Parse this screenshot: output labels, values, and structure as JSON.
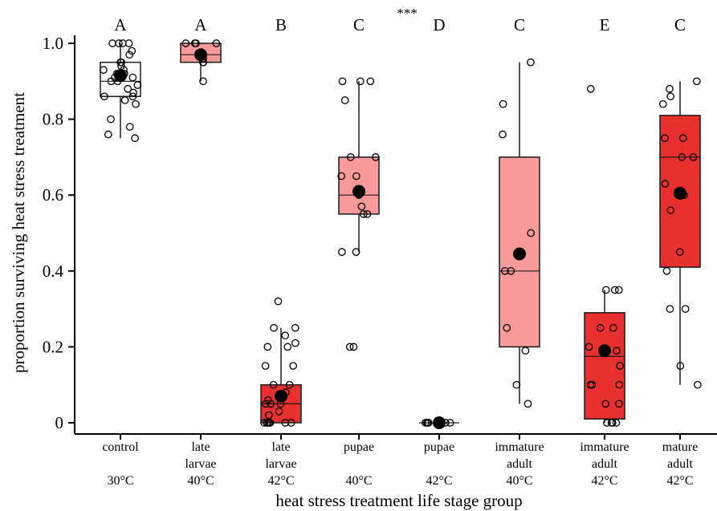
{
  "chart_data": {
    "type": "box",
    "title": "",
    "significance": "***",
    "xlabel": "heat stress treatment life stage group",
    "ylabel": "proportion surviving heat stress treatment",
    "ylim": [
      -0.03,
      1.03
    ],
    "yticks": [
      {
        "value": 0,
        "label": "0"
      },
      {
        "value": 0.2,
        "label": "0.2"
      },
      {
        "value": 0.4,
        "label": "0.4"
      },
      {
        "value": 0.6,
        "label": "0.6"
      },
      {
        "value": 0.8,
        "label": "0.8"
      },
      {
        "value": 1.0,
        "label": "1.0"
      }
    ],
    "colors": {
      "control": "#ffffff",
      "light_red": "#f99a9a",
      "red": "#e8302e",
      "outline": "#1a1a1a",
      "mean": "#000000"
    },
    "groups": [
      {
        "name_lines": [
          "control",
          "",
          "30°C"
        ],
        "letter": "A",
        "fill": "control",
        "q1": 0.86,
        "median": 0.9,
        "q3": 0.95,
        "whisker_low": 0.75,
        "whisker_high": 1.0,
        "mean": 0.915,
        "points": [
          1.0,
          1.0,
          1.0,
          1.0,
          0.98,
          0.97,
          0.95,
          0.95,
          0.94,
          0.93,
          0.93,
          0.92,
          0.92,
          0.91,
          0.91,
          0.9,
          0.9,
          0.89,
          0.88,
          0.87,
          0.86,
          0.86,
          0.85,
          0.84,
          0.8,
          0.78,
          0.76,
          0.75
        ]
      },
      {
        "name_lines": [
          "late",
          "larvae",
          "40°C"
        ],
        "letter": "A",
        "fill": "light_red",
        "q1": 0.95,
        "median": 0.97,
        "q3": 1.0,
        "whisker_low": 0.9,
        "whisker_high": 1.0,
        "mean": 0.97,
        "points": [
          1.0,
          1.0,
          1.0,
          1.0,
          0.97,
          0.96,
          0.95,
          0.95,
          0.9
        ]
      },
      {
        "name_lines": [
          "late",
          "larvae",
          "42°C"
        ],
        "letter": "B",
        "fill": "red",
        "q1": 0.0,
        "median": 0.05,
        "q3": 0.1,
        "whisker_low": 0.0,
        "whisker_high": 0.25,
        "mean": 0.07,
        "points": [
          0.32,
          0.25,
          0.25,
          0.23,
          0.21,
          0.2,
          0.2,
          0.15,
          0.15,
          0.1,
          0.1,
          0.08,
          0.06,
          0.05,
          0.05,
          0.05,
          0.03,
          0.02,
          0.0,
          0.0,
          0.0,
          0.0,
          0.0,
          0.0,
          0.0
        ]
      },
      {
        "name_lines": [
          "pupae",
          "",
          "40°C"
        ],
        "letter": "C",
        "fill": "light_red",
        "q1": 0.55,
        "median": 0.6,
        "q3": 0.7,
        "whisker_low": 0.45,
        "whisker_high": 0.9,
        "mean": 0.61,
        "points": [
          0.9,
          0.9,
          0.9,
          0.85,
          0.7,
          0.7,
          0.65,
          0.65,
          0.6,
          0.57,
          0.55,
          0.55,
          0.45,
          0.45,
          0.2,
          0.2
        ]
      },
      {
        "name_lines": [
          "pupae",
          "",
          "42°C"
        ],
        "letter": "D",
        "fill": "red",
        "q1": 0.0,
        "median": 0.0,
        "q3": 0.0,
        "whisker_low": 0.0,
        "whisker_high": 0.0,
        "mean": 0.0,
        "points": [
          0.0,
          0.0,
          0.0,
          0.0,
          0.0,
          0.0
        ]
      },
      {
        "name_lines": [
          "immature",
          "adult",
          "40°C"
        ],
        "letter": "C",
        "fill": "light_red",
        "q1": 0.2,
        "median": 0.4,
        "q3": 0.7,
        "whisker_low": 0.05,
        "whisker_high": 0.95,
        "mean": 0.445,
        "points": [
          0.95,
          0.84,
          0.76,
          0.5,
          0.4,
          0.4,
          0.25,
          0.19,
          0.1,
          0.05
        ]
      },
      {
        "name_lines": [
          "immature",
          "adult",
          "42°C"
        ],
        "letter": "E",
        "fill": "red",
        "q1": 0.01,
        "median": 0.175,
        "q3": 0.29,
        "whisker_low": 0.0,
        "whisker_high": 0.35,
        "mean": 0.19,
        "points": [
          0.88,
          0.35,
          0.35,
          0.35,
          0.25,
          0.25,
          0.2,
          0.19,
          0.15,
          0.1,
          0.1,
          0.1,
          0.05,
          0.05,
          0.0,
          0.0,
          0.0,
          0.0
        ]
      },
      {
        "name_lines": [
          "mature",
          "adult",
          "42°C"
        ],
        "letter": "C",
        "fill": "red",
        "q1": 0.41,
        "median": 0.7,
        "q3": 0.81,
        "whisker_low": 0.1,
        "whisker_high": 0.9,
        "mean": 0.605,
        "points": [
          0.9,
          0.88,
          0.86,
          0.84,
          0.75,
          0.75,
          0.7,
          0.7,
          0.63,
          0.6,
          0.56,
          0.45,
          0.4,
          0.3,
          0.3,
          0.15,
          0.1
        ]
      }
    ]
  }
}
